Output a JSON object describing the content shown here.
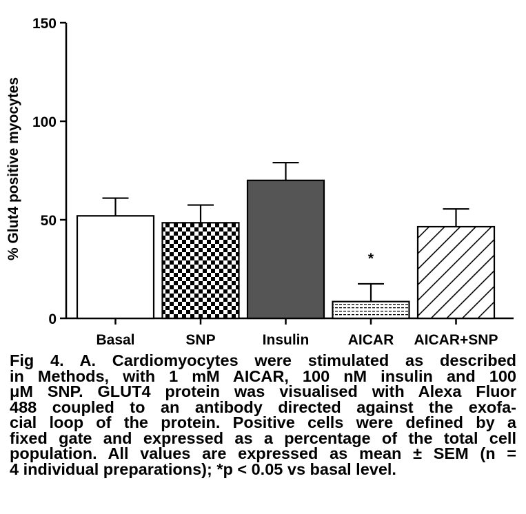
{
  "chart_data": {
    "type": "bar",
    "categories": [
      "Basal",
      "SNP",
      "Insulin",
      "AICAR",
      "AICAR+SNP"
    ],
    "values": [
      52,
      48.5,
      70,
      8.5,
      46.5
    ],
    "errors": [
      9,
      9,
      9,
      9,
      9
    ],
    "ylabel": "% Glut4 positive myocytes",
    "xlabel": "",
    "ylim": [
      0,
      150
    ],
    "yticks": [
      "0",
      "50",
      "100",
      "150"
    ],
    "annotations": [
      {
        "category": "AICAR",
        "text": "*"
      }
    ],
    "fills": [
      "white",
      "checker",
      "#555555",
      "dotted",
      "hatch"
    ],
    "grid": false
  },
  "caption": {
    "lines": [
      "Fig 4. A. Cardiomyocytes were stimulated as described",
      "in Methods, with 1 mM AICAR, 100 nM insulin and 100",
      "μM SNP. GLUT4 protein was visualised with Alexa Fluor",
      "488 coupled to an antibody directed against the exofa-",
      "cial loop of the protein. Positive cells were defined by a",
      "fixed gate and expressed as a percentage of the total cell",
      "population. All values are expressed as mean ± SEM (n =",
      "4 individual preparations); *p < 0.05 vs basal level."
    ]
  }
}
